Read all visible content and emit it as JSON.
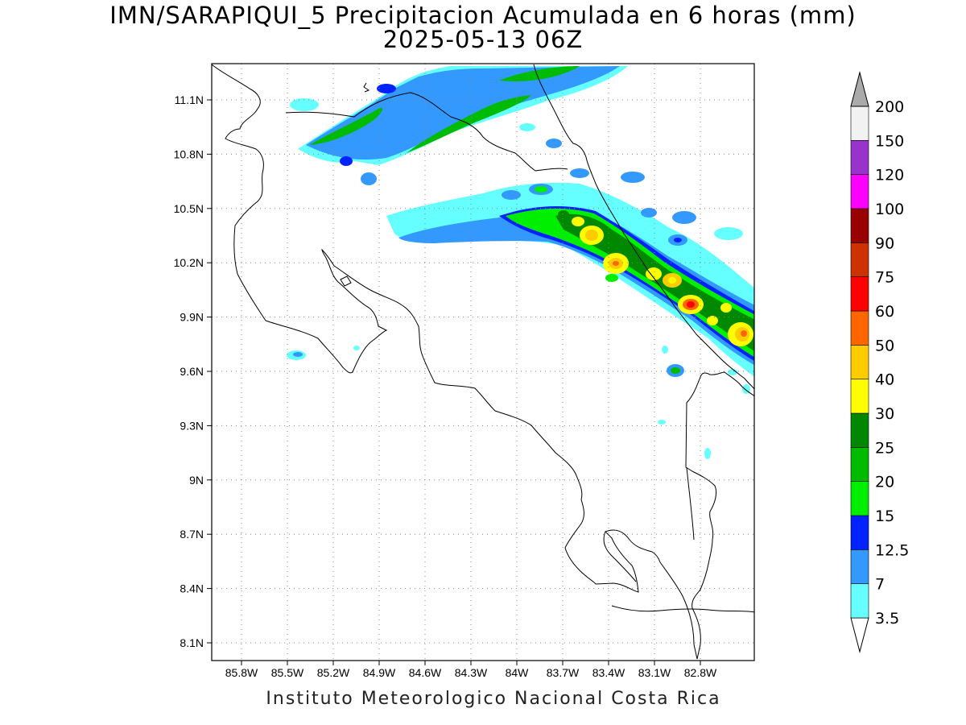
{
  "header": {
    "title": "IMN/SARAPIQUI_5 Precipitacion Acumulada en 6 horas (mm)",
    "datetime": "2025-05-13 06Z"
  },
  "footer": "Instituto Meteorologico Nacional Costa Rica",
  "map": {
    "lon_range": [
      -86.1,
      -82.5
    ],
    "lat_range": [
      8.0,
      11.3
    ],
    "lon_ticks": [
      "85.8W",
      "85.5W",
      "85.2W",
      "84.9W",
      "84.6W",
      "84.3W",
      "84W",
      "83.7W",
      "83.4W",
      "83.1W",
      "82.8W"
    ],
    "lat_ticks": [
      "11.1N",
      "10.8N",
      "10.5N",
      "10.2N",
      "9.9N",
      "9.6N",
      "9.3N",
      "9N",
      "8.7N",
      "8.4N",
      "8.1N"
    ],
    "grid": "dotted"
  },
  "colorbar": {
    "labels": [
      "3.5",
      "7",
      "12.5",
      "15",
      "20",
      "25",
      "30",
      "40",
      "50",
      "60",
      "75",
      "90",
      "100",
      "120",
      "150",
      "200"
    ],
    "colors": [
      "#66ffff",
      "#3399ff",
      "#0022ff",
      "#00ee00",
      "#00bb00",
      "#008800",
      "#ffff00",
      "#ffcc00",
      "#ff6600",
      "#ff0000",
      "#cc3300",
      "#990000",
      "#ff00ff",
      "#9933cc",
      "#f2f2f2",
      "#aaaaaa"
    ]
  }
}
